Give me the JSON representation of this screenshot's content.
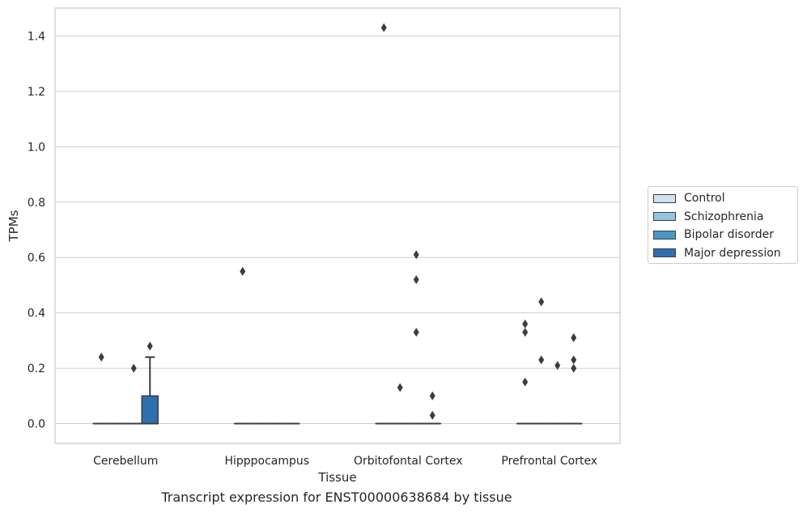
{
  "chart_data": {
    "type": "box",
    "title": "",
    "caption": "Transcript expression for ENST00000638684 by tissue",
    "xlabel": "Tissue",
    "ylabel": "TPMs",
    "ylim": [
      -0.07,
      1.5
    ],
    "yticks": [
      0.0,
      0.2,
      0.4,
      0.6,
      0.8,
      1.0,
      1.2,
      1.4
    ],
    "ytick_labels": [
      "0.0",
      "0.2",
      "0.4",
      "0.6",
      "0.8",
      "1.0",
      "1.2",
      "1.4"
    ],
    "grid": "horizontal",
    "legend_position": "right",
    "categories": [
      "Cerebellum",
      "Hipppocampus",
      "Orbitofontal Cortex",
      "Prefrontal Cortex"
    ],
    "series": [
      {
        "name": "Control",
        "color": "#d0e1f2",
        "boxes": [
          {
            "q1": 0,
            "median": 0,
            "q3": 0,
            "whisker_low": 0,
            "whisker_high": 0,
            "outliers": [
              0.24
            ]
          },
          {
            "q1": 0,
            "median": 0,
            "q3": 0,
            "whisker_low": 0,
            "whisker_high": 0,
            "outliers": [
              0.55
            ]
          },
          {
            "q1": 0,
            "median": 0,
            "q3": 0,
            "whisker_low": 0,
            "whisker_high": 0,
            "outliers": [
              1.43
            ]
          },
          {
            "q1": 0,
            "median": 0,
            "q3": 0,
            "whisker_low": 0,
            "whisker_high": 0,
            "outliers": [
              0.36,
              0.33,
              0.15
            ]
          }
        ]
      },
      {
        "name": "Schizophrenia",
        "color": "#94c4df",
        "boxes": [
          {
            "q1": 0,
            "median": 0,
            "q3": 0,
            "whisker_low": 0,
            "whisker_high": 0,
            "outliers": []
          },
          {
            "q1": 0,
            "median": 0,
            "q3": 0,
            "whisker_low": 0,
            "whisker_high": 0,
            "outliers": []
          },
          {
            "q1": 0,
            "median": 0,
            "q3": 0,
            "whisker_low": 0,
            "whisker_high": 0,
            "outliers": [
              0.13
            ]
          },
          {
            "q1": 0,
            "median": 0,
            "q3": 0,
            "whisker_low": 0,
            "whisker_high": 0,
            "outliers": [
              0.44,
              0.23
            ]
          }
        ]
      },
      {
        "name": "Bipolar disorder",
        "color": "#4a98c9",
        "boxes": [
          {
            "q1": 0,
            "median": 0,
            "q3": 0,
            "whisker_low": 0,
            "whisker_high": 0,
            "outliers": [
              0.2
            ]
          },
          {
            "q1": 0,
            "median": 0,
            "q3": 0,
            "whisker_low": 0,
            "whisker_high": 0,
            "outliers": []
          },
          {
            "q1": 0,
            "median": 0,
            "q3": 0,
            "whisker_low": 0,
            "whisker_high": 0,
            "outliers": [
              0.61,
              0.52,
              0.33
            ]
          },
          {
            "q1": 0,
            "median": 0,
            "q3": 0,
            "whisker_low": 0,
            "whisker_high": 0,
            "outliers": [
              0.21
            ]
          }
        ]
      },
      {
        "name": "Major depression",
        "color": "#2e6fb0",
        "boxes": [
          {
            "q1": 0,
            "median": 0,
            "q3": 0.1,
            "whisker_low": 0,
            "whisker_high": 0.24,
            "outliers": [
              0.28
            ]
          },
          {
            "q1": 0,
            "median": 0,
            "q3": 0,
            "whisker_low": 0,
            "whisker_high": 0,
            "outliers": []
          },
          {
            "q1": 0,
            "median": 0,
            "q3": 0,
            "whisker_low": 0,
            "whisker_high": 0,
            "outliers": [
              0.1,
              0.03
            ]
          },
          {
            "q1": 0,
            "median": 0,
            "q3": 0,
            "whisker_low": 0,
            "whisker_high": 0,
            "outliers": [
              0.31,
              0.23,
              0.2
            ]
          }
        ]
      }
    ]
  }
}
